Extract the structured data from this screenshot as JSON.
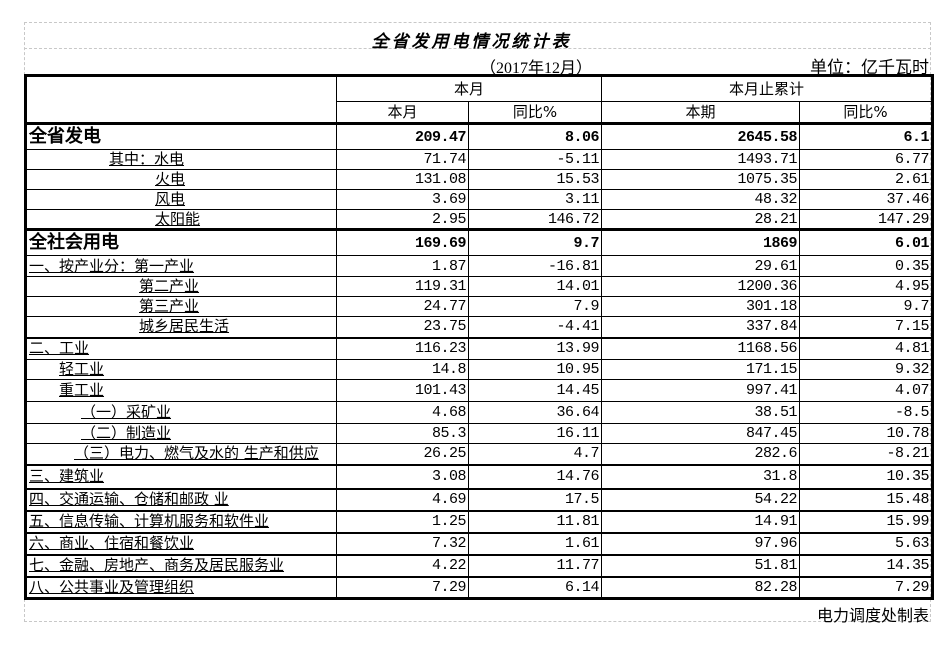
{
  "title": "全省发用电情况统计表",
  "period": "（2017年12月）",
  "unit": "单位：亿千瓦时",
  "footer": "电力调度处制表",
  "header": {
    "group_month": "本月",
    "group_cumulative": "本月止累计",
    "cols": [
      "本月",
      "同比%",
      "本期",
      "同比%"
    ]
  },
  "rows": [
    {
      "label": "全省发电",
      "values": [
        "209.47",
        "8.06",
        "2645.58",
        "6.1"
      ]
    },
    {
      "label": "其中：水电",
      "values": [
        "71.74",
        "-5.11",
        "1493.71",
        "6.77"
      ]
    },
    {
      "label": "火电",
      "values": [
        "131.08",
        "15.53",
        "1075.35",
        "2.61"
      ]
    },
    {
      "label": "风电",
      "values": [
        "3.69",
        "3.11",
        "48.32",
        "37.46"
      ]
    },
    {
      "label": "太阳能",
      "values": [
        "2.95",
        "146.72",
        "28.21",
        "147.29"
      ]
    },
    {
      "label": "全社会用电",
      "values": [
        "169.69",
        "9.7",
        "1869",
        "6.01"
      ]
    },
    {
      "label": "一、按产业分：第一产业",
      "values": [
        "1.87",
        "-16.81",
        "29.61",
        "0.35"
      ]
    },
    {
      "label": "第二产业",
      "values": [
        "119.31",
        "14.01",
        "1200.36",
        "4.95"
      ]
    },
    {
      "label": "第三产业",
      "values": [
        "24.77",
        "7.9",
        "301.18",
        "9.7"
      ]
    },
    {
      "label": "城乡居民生活",
      "values": [
        "23.75",
        "-4.41",
        "337.84",
        "7.15"
      ]
    },
    {
      "label": "二、工业",
      "values": [
        "116.23",
        "13.99",
        "1168.56",
        "4.81"
      ]
    },
    {
      "label": "轻工业",
      "values": [
        "14.8",
        "10.95",
        "171.15",
        "9.32"
      ]
    },
    {
      "label": "重工业",
      "values": [
        "101.43",
        "14.45",
        "997.41",
        "4.07"
      ]
    },
    {
      "label": "（一）采矿业",
      "values": [
        "4.68",
        "36.64",
        "38.51",
        "-8.5"
      ]
    },
    {
      "label": "（二）制造业",
      "values": [
        "85.3",
        "16.11",
        "847.45",
        "10.78"
      ]
    },
    {
      "label": "（三）电力、燃气及水的 生产和供应",
      "values": [
        "26.25",
        "4.7",
        "282.6",
        "-8.21"
      ]
    },
    {
      "label": "三、建筑业",
      "values": [
        "3.08",
        "14.76",
        "31.8",
        "10.35"
      ]
    },
    {
      "label": "四、交通运输、仓储和邮政 业",
      "values": [
        "4.69",
        "17.5",
        "54.22",
        "15.48"
      ]
    },
    {
      "label": "五、信息传输、计算机服务和软件业",
      "values": [
        "1.25",
        "11.81",
        "14.91",
        "15.99"
      ]
    },
    {
      "label": "六、商业、住宿和餐饮业",
      "values": [
        "7.32",
        "1.61",
        "97.96",
        "5.63"
      ]
    },
    {
      "label": "七、金融、房地产、商务及居民服务业",
      "values": [
        "4.22",
        "11.77",
        "51.81",
        "14.35"
      ]
    },
    {
      "label": "八、公共事业及管理组织",
      "values": [
        "7.29",
        "6.14",
        "82.28",
        "7.29"
      ]
    }
  ]
}
